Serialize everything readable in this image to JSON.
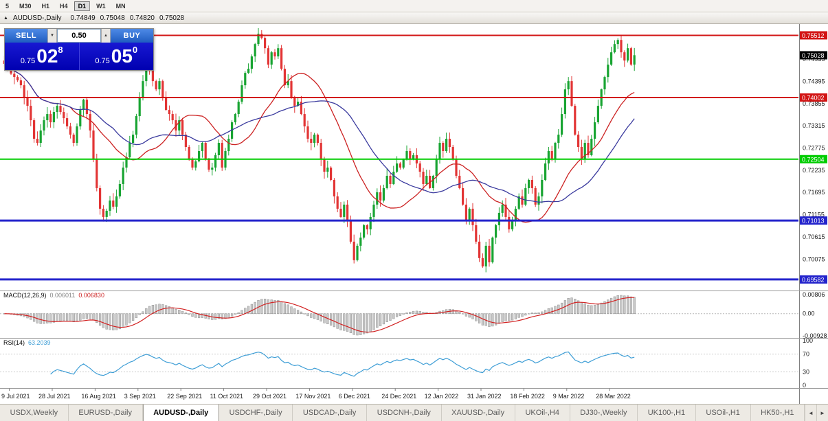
{
  "toolbar": {
    "timeframes": [
      {
        "label": "5",
        "active": false
      },
      {
        "label": "M30",
        "active": false
      },
      {
        "label": "H1",
        "active": false
      },
      {
        "label": "H4",
        "active": false
      },
      {
        "label": "D1",
        "active": true
      },
      {
        "label": "W1",
        "active": false
      },
      {
        "label": "MN",
        "active": false
      }
    ]
  },
  "chart_header": {
    "collapse_icon": "▲",
    "symbol": "AUDUSD-,Daily",
    "open": "0.74849",
    "high": "0.75048",
    "low": "0.74820",
    "close": "0.75028"
  },
  "trade_panel": {
    "sell_label": "SELL",
    "buy_label": "BUY",
    "volume": "0.50",
    "volume_down_icon": "▼",
    "volume_up_icon": "▲",
    "sell_price": {
      "prefix": "0.75",
      "big": "02",
      "sup": "8"
    },
    "buy_price": {
      "prefix": "0.75",
      "big": "05",
      "sup": "0"
    }
  },
  "chart_data": {
    "type": "candlestick",
    "symbol": "AUDUSD-",
    "timeframe": "Daily",
    "ohlc_current": {
      "open": 0.74849,
      "high": 0.75048,
      "low": 0.7482,
      "close": 0.75028
    },
    "y_range": [
      0.6938,
      0.7572
    ],
    "current_price": {
      "price": 0.75028,
      "label": "0.75028",
      "bg": "#000000"
    },
    "hlines": [
      {
        "price": 0.75512,
        "label": "0.75512",
        "color": "#D21414",
        "width": 2
      },
      {
        "price": 0.74002,
        "label": "0.74002",
        "color": "#D21414",
        "width": 2
      },
      {
        "price": 0.72504,
        "label": "0.72504",
        "color": "#00CC00",
        "width": 2
      },
      {
        "price": 0.71013,
        "label": "0.71013",
        "color": "#2424CC",
        "width": 3
      },
      {
        "price": 0.69582,
        "label": "0.69582",
        "color": "#2424CC",
        "width": 3
      }
    ],
    "axis_labels": [
      "0.74935",
      "0.74395",
      "0.73855",
      "0.73315",
      "0.72775",
      "0.72235",
      "0.71695",
      "0.71155",
      "0.70615",
      "0.70075"
    ],
    "moving_averages": [
      {
        "period": 21,
        "color": "#CC2222"
      },
      {
        "period": 34,
        "color": "#3A3A9E"
      }
    ],
    "x_labels": [
      {
        "index": 2,
        "label": "9 Jul 2021"
      },
      {
        "index": 15,
        "label": "28 Jul 2021"
      },
      {
        "index": 28,
        "label": "16 Aug 2021"
      },
      {
        "index": 41,
        "label": "3 Sep 2021"
      },
      {
        "index": 54,
        "label": "22 Sep 2021"
      },
      {
        "index": 67,
        "label": "11 Oct 2021"
      },
      {
        "index": 80,
        "label": "29 Oct 2021"
      },
      {
        "index": 93,
        "label": "17 Nov 2021"
      },
      {
        "index": 106,
        "label": "6 Dec 2021"
      },
      {
        "index": 119,
        "label": "24 Dec 2021"
      },
      {
        "index": 132,
        "label": "12 Jan 2022"
      },
      {
        "index": 145,
        "label": "31 Jan 2022"
      },
      {
        "index": 158,
        "label": "18 Feb 2022"
      },
      {
        "index": 171,
        "label": "9 Mar 2022"
      },
      {
        "index": 184,
        "label": "28 Mar 2022"
      }
    ],
    "closes": [
      0.7482,
      0.747,
      0.7458,
      0.745,
      0.7442,
      0.743,
      0.74,
      0.738,
      0.7345,
      0.73,
      0.729,
      0.732,
      0.7345,
      0.736,
      0.734,
      0.7365,
      0.738,
      0.7365,
      0.735,
      0.733,
      0.731,
      0.729,
      0.733,
      0.737,
      0.7395,
      0.736,
      0.732,
      0.725,
      0.718,
      0.713,
      0.711,
      0.7125,
      0.715,
      0.7135,
      0.716,
      0.719,
      0.723,
      0.7255,
      0.729,
      0.731,
      0.7355,
      0.74,
      0.744,
      0.7478,
      0.7465,
      0.744,
      0.742,
      0.744,
      0.74,
      0.737,
      0.736,
      0.7345,
      0.732,
      0.7345,
      0.731,
      0.728,
      0.725,
      0.723,
      0.7245,
      0.727,
      0.729,
      0.725,
      0.7225,
      0.723,
      0.726,
      0.729,
      0.723,
      0.727,
      0.73,
      0.734,
      0.736,
      0.739,
      0.743,
      0.746,
      0.747,
      0.75,
      0.753,
      0.7555,
      0.7545,
      0.752,
      0.748,
      0.751,
      0.75,
      0.752,
      0.747,
      0.743,
      0.744,
      0.74,
      0.738,
      0.739,
      0.736,
      0.733,
      0.73,
      0.729,
      0.731,
      0.729,
      0.725,
      0.722,
      0.723,
      0.72,
      0.716,
      0.713,
      0.711,
      0.714,
      0.71,
      0.705,
      0.7005,
      0.704,
      0.706,
      0.709,
      0.708,
      0.711,
      0.714,
      0.717,
      0.715,
      0.718,
      0.721,
      0.719,
      0.722,
      0.724,
      0.723,
      0.725,
      0.727,
      0.725,
      0.726,
      0.724,
      0.722,
      0.719,
      0.721,
      0.718,
      0.721,
      0.725,
      0.729,
      0.727,
      0.73,
      0.728,
      0.725,
      0.721,
      0.718,
      0.714,
      0.71,
      0.713,
      0.709,
      0.705,
      0.701,
      0.699,
      0.704,
      0.7,
      0.706,
      0.709,
      0.712,
      0.714,
      0.711,
      0.708,
      0.71,
      0.713,
      0.716,
      0.714,
      0.718,
      0.72,
      0.718,
      0.714,
      0.716,
      0.72,
      0.724,
      0.727,
      0.725,
      0.729,
      0.731,
      0.736,
      0.742,
      0.744,
      0.738,
      0.731,
      0.728,
      0.725,
      0.729,
      0.726,
      0.73,
      0.734,
      0.738,
      0.742,
      0.745,
      0.748,
      0.751,
      0.753,
      0.754,
      0.751,
      0.749,
      0.752,
      0.748,
      0.7503
    ]
  },
  "macd": {
    "label": "MACD(12,26,9)",
    "value_main": "0.006011",
    "value_signal": "0.006830",
    "axis": [
      "0.00806",
      "0.00",
      "-0.00928"
    ]
  },
  "rsi": {
    "label": "RSI(14)",
    "value": "63.2039",
    "axis": [
      "100",
      "70",
      "30",
      "0"
    ],
    "levels": [
      70,
      30
    ]
  },
  "tabs": {
    "items": [
      {
        "label": "USDX,Weekly",
        "active": false
      },
      {
        "label": "EURUSD-,Daily",
        "active": false
      },
      {
        "label": "AUDUSD-,Daily",
        "active": true
      },
      {
        "label": "USDCHF-,Daily",
        "active": false
      },
      {
        "label": "USDCAD-,Daily",
        "active": false
      },
      {
        "label": "USDCNH-,Daily",
        "active": false
      },
      {
        "label": "XAUUSD-,Daily",
        "active": false
      },
      {
        "label": "UKOil-,H4",
        "active": false
      },
      {
        "label": "DJ30-,Weekly",
        "active": false
      },
      {
        "label": "UK100-,H1",
        "active": false
      },
      {
        "label": "USOil-,H1",
        "active": false
      },
      {
        "label": "HK50-,H1",
        "active": false
      }
    ],
    "scroll_left_icon": "◄",
    "scroll_right_icon": "►"
  }
}
